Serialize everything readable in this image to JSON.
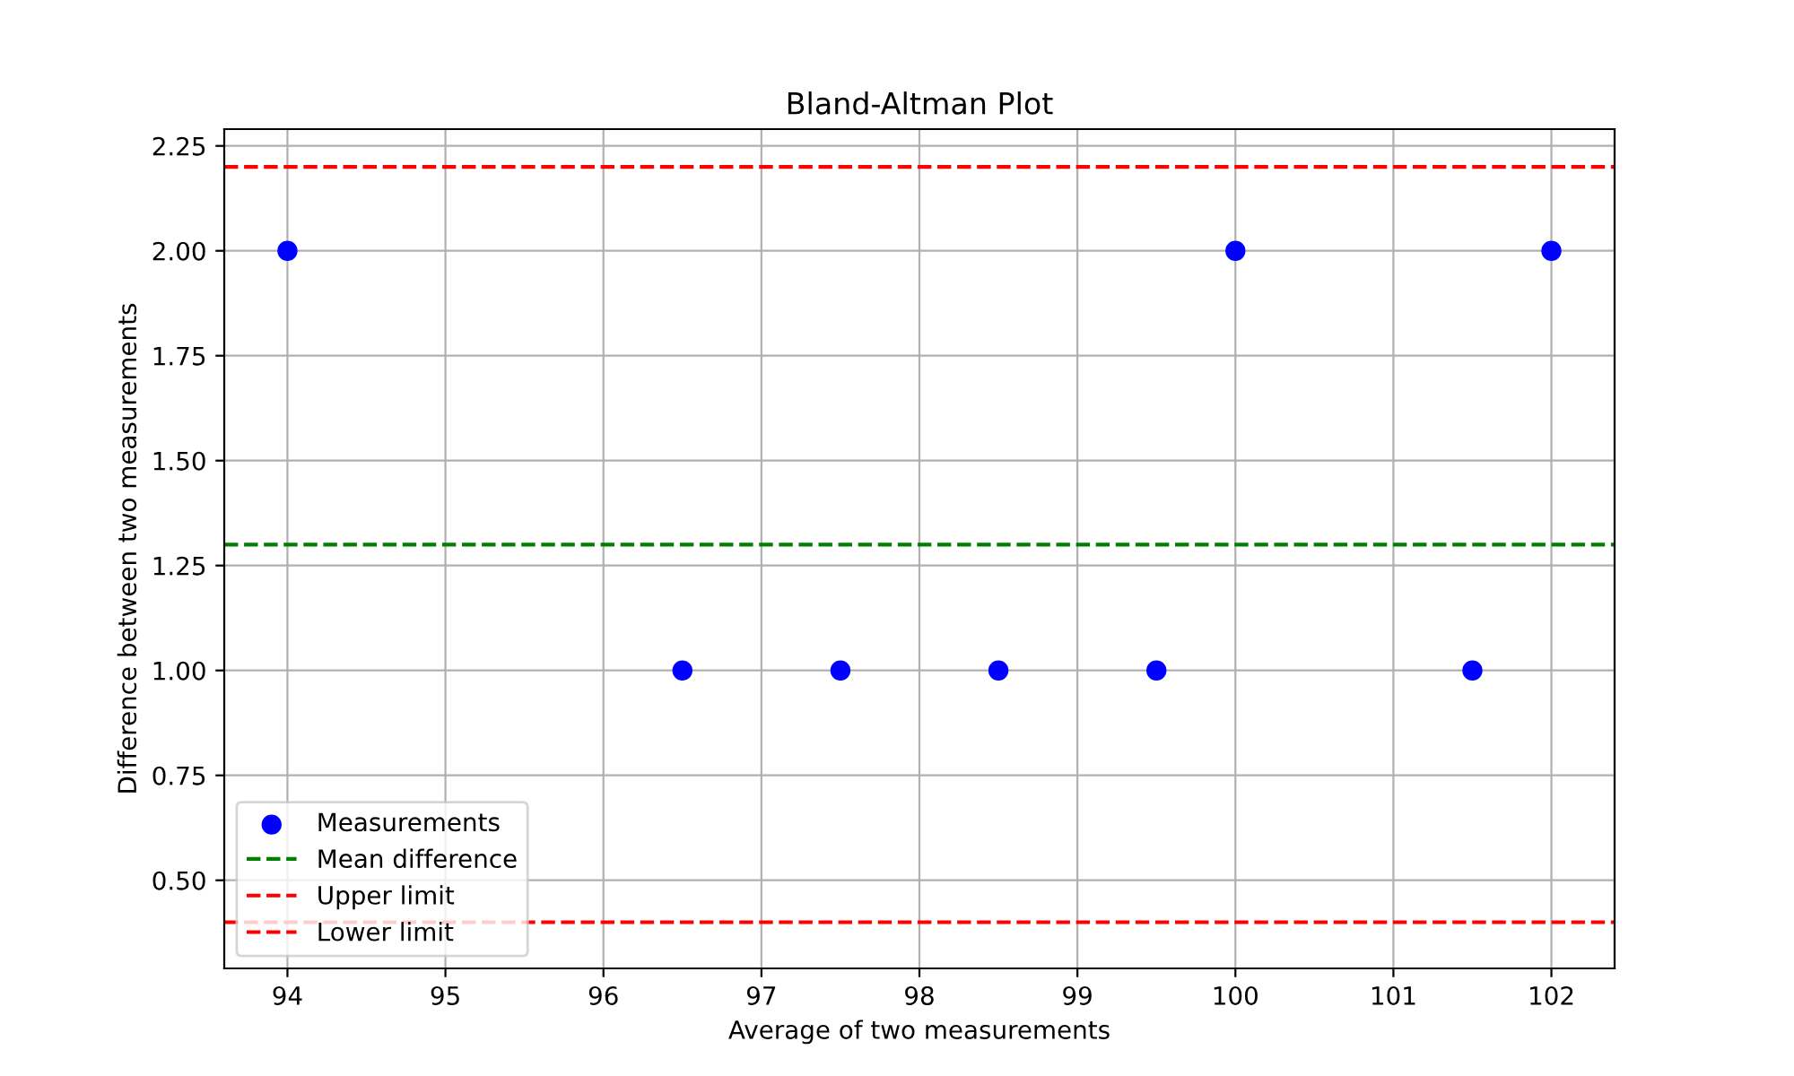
{
  "chart_data": {
    "type": "scatter",
    "title": "Bland-Altman Plot",
    "xlabel": "Average of two measurements",
    "ylabel": "Difference between two measurements",
    "x": [
      94,
      96.5,
      97.5,
      98.5,
      99.5,
      100,
      101.5,
      102
    ],
    "series": [
      {
        "name": "Measurements",
        "color": "#0000ff",
        "values": [
          2,
          1,
          1,
          1,
          1,
          2,
          1,
          2
        ]
      }
    ],
    "marker": "circle",
    "ref_lines": [
      {
        "axis": "y",
        "value": 1.3,
        "label": "Mean difference",
        "color": "#008000",
        "line_style": "dashed"
      },
      {
        "axis": "y",
        "value": 2.2,
        "label": "Upper limit",
        "color": "#ff0000",
        "line_style": "dashed"
      },
      {
        "axis": "y",
        "value": 0.4,
        "label": "Lower limit",
        "color": "#ff0000",
        "line_style": "dashed"
      }
    ],
    "xlim": [
      93.6,
      102.4
    ],
    "xticks": [
      94,
      95,
      96,
      97,
      98,
      99,
      100,
      101,
      102
    ],
    "ylim": [
      0.29,
      2.29
    ],
    "yticks": [
      {
        "value": 0.5,
        "label": "0.50"
      },
      {
        "value": 0.75,
        "label": "0.75"
      },
      {
        "value": 1.0,
        "label": "1.00"
      },
      {
        "value": 1.25,
        "label": "1.25"
      },
      {
        "value": 1.5,
        "label": "1.50"
      },
      {
        "value": 1.75,
        "label": "1.75"
      },
      {
        "value": 2.0,
        "label": "2.00"
      },
      {
        "value": 2.25,
        "label": "2.25"
      }
    ],
    "grid": true,
    "legend": "lower left"
  }
}
